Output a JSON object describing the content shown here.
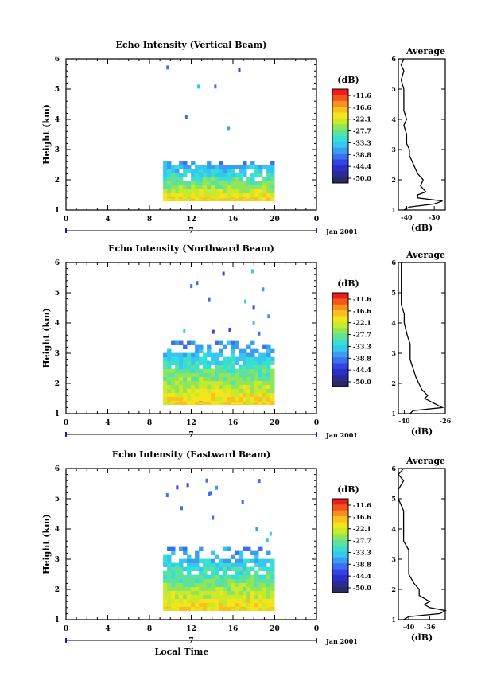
{
  "figure": {
    "date_label": "Jan 2001",
    "date_tick": "7",
    "xlabel": "Local Time",
    "ylabel": "Height (km)",
    "cbar_unit": "(dB)",
    "cbar_ticks": [
      "-11.6",
      "-16.6",
      "-22.1",
      "-27.7",
      "-33.3",
      "-38.8",
      "-44.4",
      "-50.0"
    ],
    "cbar_colors": [
      "#ee1c1c",
      "#f3561c",
      "#f7901e",
      "#f9c01f",
      "#f4e41c",
      "#c9ea2a",
      "#8ee65a",
      "#5ee19e",
      "#36dfd3",
      "#35c7f1",
      "#3a9df0",
      "#3a6ff0",
      "#3344e6",
      "#2c2ec8",
      "#2a2b96",
      "#2a2a66"
    ],
    "avg_title": "Average",
    "avg_unit": "(dB)"
  },
  "chart_data": [
    {
      "type": "heatmap",
      "title": "Echo Intensity (Vertical Beam)",
      "xlabel": "",
      "ylabel": "Height (km)",
      "xlim": [
        0,
        24
      ],
      "ylim": [
        1,
        6
      ],
      "xticks": [
        "0",
        "4",
        "8",
        "12",
        "16",
        "20",
        "0"
      ],
      "yticks": [
        "1",
        "2",
        "3",
        "4",
        "5",
        "6"
      ],
      "data_start_hour": 9.3,
      "data_end_hour": 19.6,
      "cloud_base_km": 1.3,
      "cloud_top_km": 2.6,
      "average_profile": {
        "xlim": [
          -43,
          -26
        ],
        "xticks": [
          "-40",
          "-30"
        ],
        "height_km": [
          1.0,
          1.1,
          1.2,
          1.3,
          1.4,
          1.5,
          1.6,
          1.8,
          2.0,
          2.2,
          2.4,
          2.6,
          2.8,
          3.0,
          3.2,
          3.5,
          3.8,
          4.0,
          4.3,
          4.6,
          5.0,
          5.3,
          5.6,
          5.8,
          6.0
        ],
        "db": [
          -41,
          -39,
          -30,
          -27,
          -36,
          -36,
          -33,
          -35,
          -34,
          -36,
          -37,
          -38,
          -39,
          -39,
          -40,
          -40,
          -41,
          -40,
          -41,
          -41,
          -41,
          -42,
          -41,
          -42,
          -41
        ]
      }
    },
    {
      "type": "heatmap",
      "title": "Echo Intensity (Northward Beam)",
      "xlabel": "",
      "ylabel": "Height (km)",
      "xlim": [
        0,
        24
      ],
      "ylim": [
        1,
        6
      ],
      "xticks": [
        "0",
        "4",
        "8",
        "12",
        "16",
        "20",
        "0"
      ],
      "yticks": [
        "1",
        "2",
        "3",
        "4",
        "5",
        "6"
      ],
      "data_start_hour": 9.3,
      "data_end_hour": 19.6,
      "cloud_base_km": 1.3,
      "cloud_top_km": 3.3,
      "average_profile": {
        "xlim": [
          -42,
          -26
        ],
        "xticks": [
          "-40",
          "-26"
        ],
        "height_km": [
          1.0,
          1.1,
          1.2,
          1.3,
          1.4,
          1.5,
          1.6,
          1.8,
          2.0,
          2.2,
          2.5,
          2.8,
          3.0,
          3.3,
          3.6,
          4.0,
          4.3,
          4.6,
          5.0,
          5.3,
          5.6,
          5.8,
          6.0
        ],
        "db": [
          -38,
          -37,
          -27,
          -29,
          -31,
          -33,
          -32,
          -34,
          -35,
          -36,
          -37,
          -38,
          -38,
          -38,
          -39,
          -40,
          -40,
          -41,
          -41,
          -41,
          -41,
          -41,
          -41
        ]
      }
    },
    {
      "type": "heatmap",
      "title": "Echo Intensity (Eastward Beam)",
      "xlabel": "Local Time",
      "ylabel": "Height (km)",
      "xlim": [
        0,
        24
      ],
      "ylim": [
        1,
        6
      ],
      "xticks": [
        "0",
        "4",
        "8",
        "12",
        "16",
        "20",
        "0"
      ],
      "yticks": [
        "1",
        "2",
        "3",
        "4",
        "5",
        "6"
      ],
      "data_start_hour": 9.3,
      "data_end_hour": 19.6,
      "cloud_base_km": 1.3,
      "cloud_top_km": 3.3,
      "average_profile": {
        "xlim": [
          -42,
          -33
        ],
        "xticks": [
          "-40",
          "-36"
        ],
        "height_km": [
          1.0,
          1.1,
          1.2,
          1.3,
          1.4,
          1.5,
          1.6,
          1.8,
          2.0,
          2.2,
          2.5,
          2.8,
          3.0,
          3.3,
          3.6,
          4.0,
          4.3,
          4.6,
          5.0,
          5.3,
          5.6,
          5.8,
          6.0
        ],
        "db": [
          -41,
          -40,
          -34,
          -33,
          -36,
          -37,
          -36,
          -38,
          -38,
          -39,
          -40,
          -40,
          -40,
          -40,
          -41,
          -41,
          -41,
          -41,
          -42,
          -42,
          -41,
          -42,
          -41
        ]
      }
    }
  ]
}
